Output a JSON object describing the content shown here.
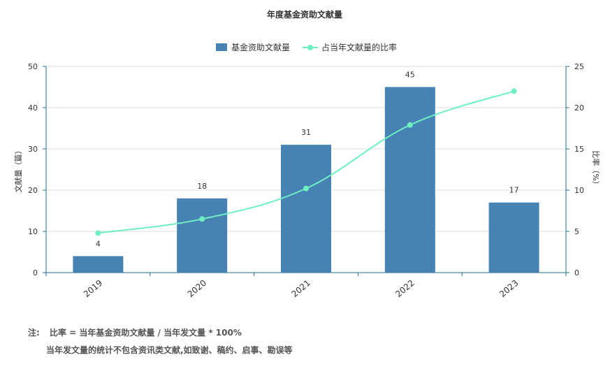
{
  "chart_data": {
    "type": "bar",
    "title": "年度基金资助文献量",
    "categories": [
      "2019",
      "2020",
      "2021",
      "2022",
      "2023"
    ],
    "series": [
      {
        "name": "基金资助文献量",
        "type": "bar",
        "axis": "left",
        "values": [
          4,
          18,
          31,
          45,
          17
        ],
        "color": "#4682b4"
      },
      {
        "name": "占当年文献量的比率",
        "type": "line",
        "axis": "right",
        "values": [
          4.8,
          6.5,
          10.2,
          17.9,
          22.0
        ],
        "color": "#6ef0c3"
      }
    ],
    "ylabel": "文献量（篇）",
    "ylim": [
      0,
      50
    ],
    "yticks": [
      "0",
      "10",
      "20",
      "30",
      "40",
      "50"
    ],
    "y2label": "比率（%）",
    "y2lim": [
      0,
      25
    ],
    "y2ticks": [
      "0",
      "5",
      "10",
      "15",
      "20",
      "25"
    ],
    "legend_position": "top-center",
    "grid": true,
    "axis_color": "#1f6f9a",
    "grid_color": "#dddddd"
  },
  "notes": {
    "label": "注:",
    "line1": "比率 = 当年基金资助文献量 / 当年发文量 * 100%",
    "line2": "当年发文量的统计不包含资讯类文献,如致谢、稿约、启事、勘误等"
  }
}
